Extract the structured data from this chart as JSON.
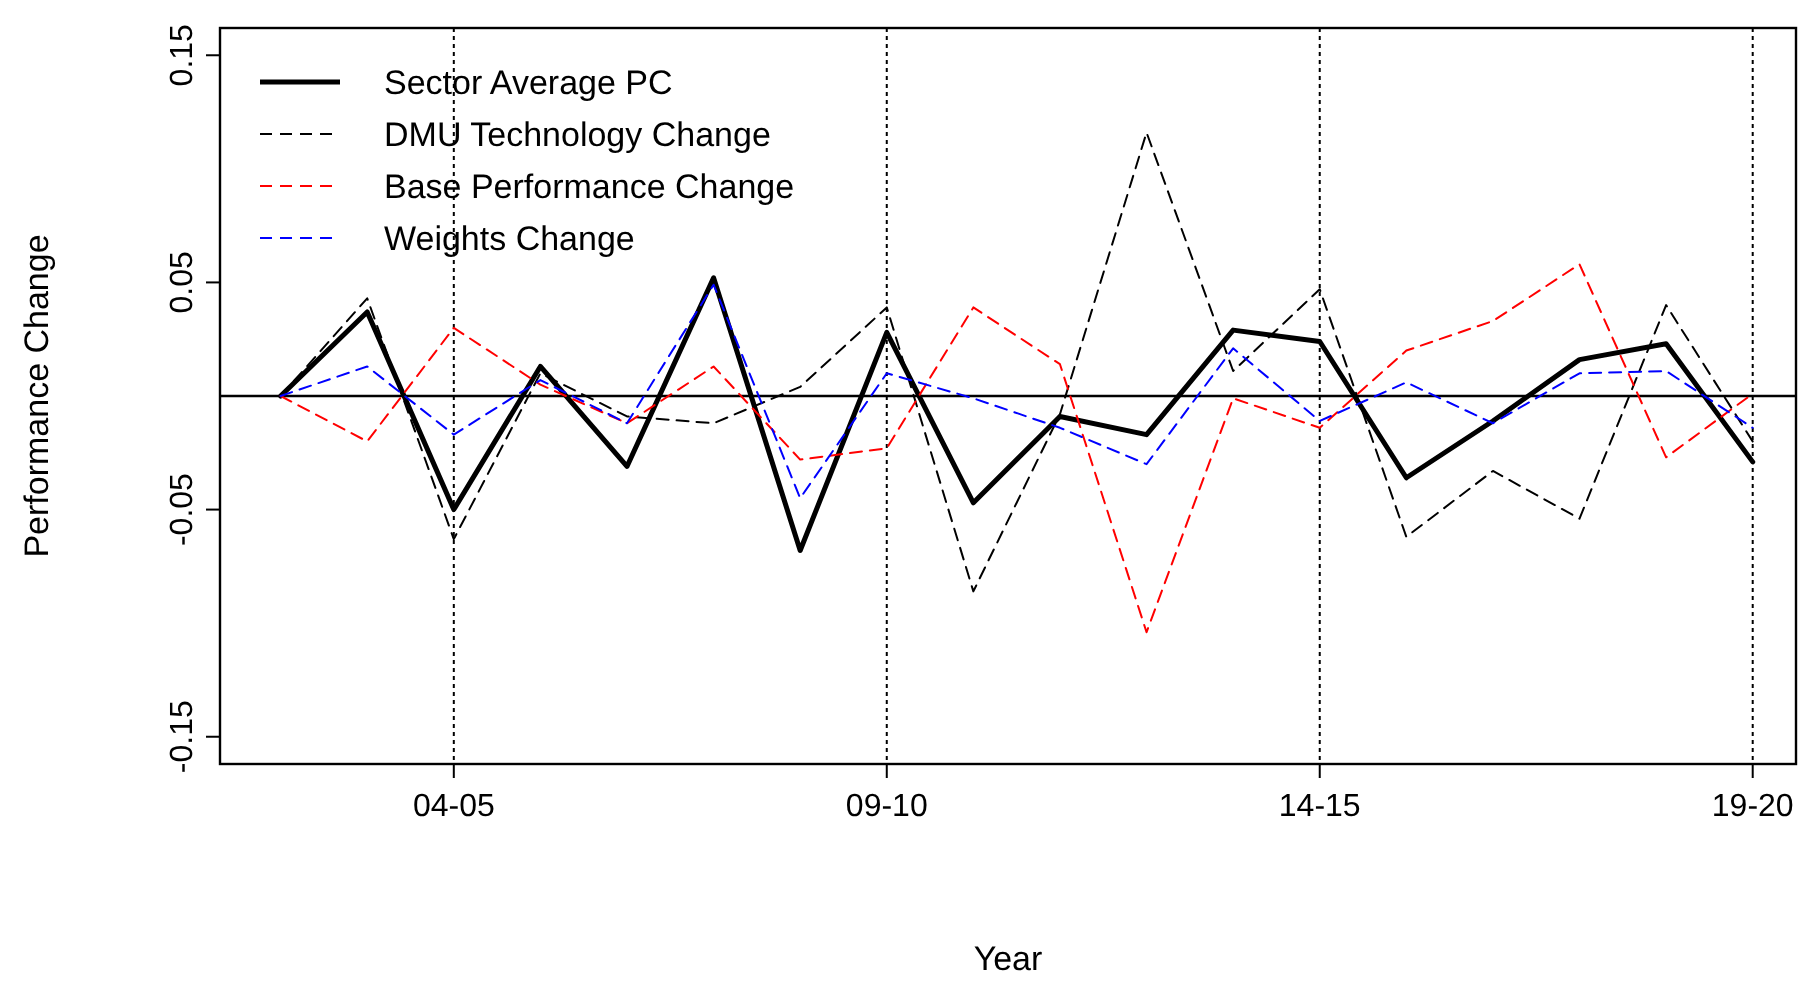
{
  "chart_data": {
    "type": "line",
    "xlabel": "Year",
    "ylabel": "Performance Change",
    "categories": [
      null,
      null,
      "04-05",
      null,
      null,
      null,
      null,
      "09-10",
      null,
      null,
      null,
      null,
      "14-15",
      null,
      null,
      null,
      null,
      "19-20"
    ],
    "ylim": [
      -0.162,
      0.162
    ],
    "yticks": [
      -0.15,
      -0.05,
      0.05,
      0.15
    ],
    "grid": "x",
    "legend": "top left",
    "ref_lines": [
      {
        "axis": "y",
        "value": 0,
        "color": "#000000",
        "line_style": "solid"
      }
    ],
    "series": [
      {
        "name": "Sector Average PC",
        "color": "#000000",
        "line_style": "solid",
        "values": [
          0,
          0.037,
          -0.05,
          0.013,
          -0.031,
          0.052,
          -0.068,
          0.028,
          -0.047,
          -0.009,
          -0.017,
          0.029,
          0.024,
          -0.036,
          -0.011,
          0.016,
          0.023,
          -0.029
        ]
      },
      {
        "name": "DMU Technology Change",
        "color": "#000000",
        "line_style": "dashed",
        "values": [
          0,
          0.043,
          -0.063,
          0.01,
          -0.009,
          -0.012,
          0.004,
          0.039,
          -0.086,
          -0.008,
          0.116,
          0.011,
          0.047,
          -0.062,
          -0.033,
          -0.054,
          0.04,
          -0.02
        ]
      },
      {
        "name": "Base Performance Change",
        "color": "#ff0000",
        "line_style": "dashed",
        "values": [
          0,
          -0.02,
          0.03,
          0.005,
          -0.012,
          0.013,
          -0.028,
          -0.023,
          0.039,
          0.014,
          -0.104,
          -0.001,
          -0.014,
          0.02,
          0.033,
          0.058,
          -0.027,
          0.001
        ]
      },
      {
        "name": "Weights Change",
        "color": "#0000ff",
        "line_style": "dashed",
        "values": [
          0,
          0.013,
          -0.017,
          0.007,
          -0.012,
          0.049,
          -0.045,
          0.01,
          -0.001,
          -0.014,
          -0.03,
          0.021,
          -0.011,
          0.006,
          -0.012,
          0.01,
          0.011,
          -0.014
        ]
      }
    ]
  }
}
